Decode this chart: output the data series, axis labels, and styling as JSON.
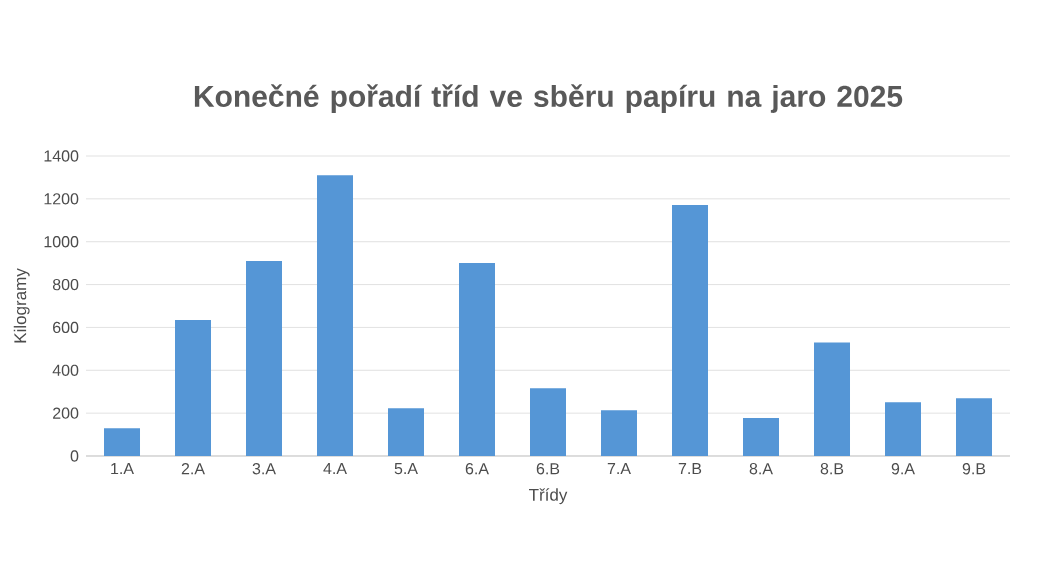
{
  "chart_data": {
    "type": "bar",
    "title": "Konečné pořadí tříd ve sběru papíru na jaro 2025",
    "xlabel": "Třídy",
    "ylabel": "Kilogramy",
    "categories": [
      "1.A",
      "2.A",
      "3.A",
      "4.A",
      "5.A",
      "6.A",
      "6.B",
      "7.A",
      "7.B",
      "8.A",
      "8.B",
      "9.A",
      "9.B"
    ],
    "values": [
      130,
      635,
      910,
      1310,
      223,
      901,
      316,
      214,
      1171,
      177,
      530,
      251,
      269
    ],
    "color": "#5596d6",
    "ylim": [
      0,
      1400
    ],
    "yticks": [
      0,
      200,
      400,
      600,
      800,
      1000,
      1200,
      1400
    ],
    "grid": "y"
  }
}
